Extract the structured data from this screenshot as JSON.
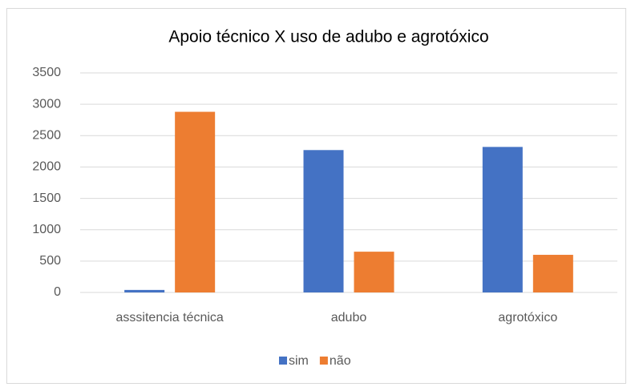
{
  "chart_data": {
    "type": "bar",
    "title": "Apoio técnico X uso de adubo e agrotóxico",
    "categories": [
      "asssitencia técnica",
      "adubo",
      "agrotóxico"
    ],
    "series": [
      {
        "name": "sim",
        "color": "#4472c4",
        "values": [
          40,
          2270,
          2320
        ]
      },
      {
        "name": "não",
        "color": "#ed7d31",
        "values": [
          2880,
          650,
          600
        ]
      }
    ],
    "ylim": [
      0,
      3500
    ],
    "yticks": [
      0,
      500,
      1000,
      1500,
      2000,
      2500,
      3000,
      3500
    ],
    "grid": true,
    "legend": "bottom"
  }
}
